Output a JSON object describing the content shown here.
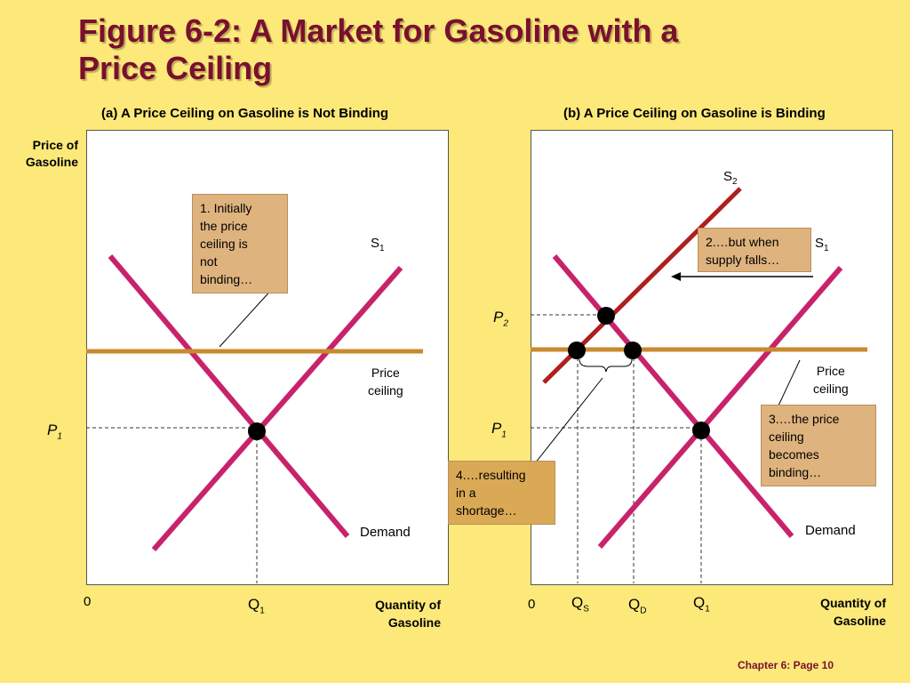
{
  "title": {
    "line1": "Figure 6-2: A Market for Gasoline with a",
    "line2": "Price Ceiling"
  },
  "panel_a": {
    "heading": "(a) A Price Ceiling on Gasoline is Not Binding",
    "y_axis_label_line1": "Price of",
    "y_axis_label_line2": "Gasoline",
    "x_axis_label_line1": "Quantity of",
    "x_axis_label_line2": "Gasoline",
    "origin": "0",
    "q1": "Q",
    "q1_sub": "1",
    "p1": "P",
    "p1_sub": "1",
    "supply": "S",
    "supply_sub": "1",
    "demand": "Demand",
    "ceiling_line1": "Price",
    "ceiling_line2": "ceiling",
    "note": [
      "1. Initially",
      "the price",
      "ceiling is",
      "not",
      "binding…"
    ]
  },
  "panel_b": {
    "heading": "(b) A Price Ceiling on Gasoline is Binding",
    "x_axis_label_line1": "Quantity of",
    "x_axis_label_line2": "Gasoline",
    "origin": "0",
    "qs": "Q",
    "qs_sub": "S",
    "qd": "Q",
    "qd_sub": "D",
    "q1": "Q",
    "q1_sub": "1",
    "p1": "P",
    "p1_sub": "1",
    "p2": "P",
    "p2_sub": "2",
    "supply1": "S",
    "supply1_sub": "1",
    "supply2": "S",
    "supply2_sub": "2",
    "demand": "Demand",
    "ceiling_line1": "Price",
    "ceiling_line2": "ceiling",
    "note_supply": [
      "2.…but when",
      "supply falls…"
    ],
    "note_binding": [
      "3.…the price",
      "ceiling",
      "becomes",
      "binding…"
    ],
    "note_shortage": [
      "4.…resulting",
      "in a",
      "shortage…"
    ]
  },
  "colors": {
    "background": "#fce97a",
    "title": "#7a0f2e",
    "demand_supply": "#c8236a",
    "supply2": "#b01e1e",
    "ceiling": "#c98a2e"
  },
  "footer": "Chapter 6: Page 10"
}
